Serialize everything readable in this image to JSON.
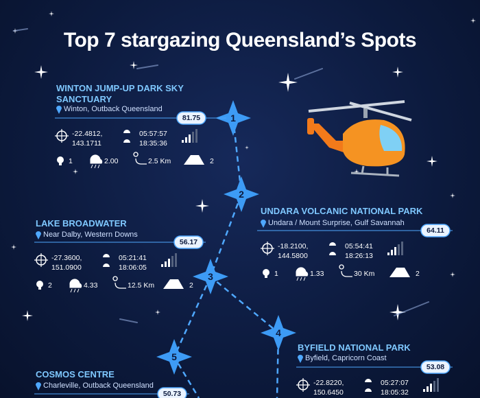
{
  "header": {
    "title": "Top 7 stargazing Queensland’s Spots"
  },
  "spots": [
    {
      "rank": "1",
      "name": "WINTON JUMP-UP DARK SKY SANCTUARY",
      "location": "Winton, Outback Queensland",
      "score": "81.75",
      "latitude": "-22.4812,",
      "longitude": "143.1711",
      "sunrise": "05:57:57",
      "sunset": "18:35:36",
      "light": "1",
      "rain": "2.00",
      "distance": "2.5 Km",
      "campsites": "2"
    },
    {
      "rank": "2",
      "name": "UNDARA VOLCANIC NATIONAL PARK",
      "location": "Undara / Mount Surprise, Gulf Savannah",
      "score": "64.11",
      "latitude": "-18.2100,",
      "longitude": "144.5800",
      "sunrise": "05:54:41",
      "sunset": "18:26:13",
      "light": "1",
      "rain": "1.33",
      "distance": "30 Km",
      "campsites": "2"
    },
    {
      "rank": "3",
      "name": "LAKE BROADWATER",
      "location": "Near Dalby, Western Downs",
      "score": "56.17",
      "latitude": "-27.3600,",
      "longitude": "151.0900",
      "sunrise": "05:21:41",
      "sunset": "18:06:05",
      "light": "2",
      "rain": "4.33",
      "distance": "12.5 Km",
      "campsites": "2"
    },
    {
      "rank": "4",
      "name": "BYFIELD NATIONAL PARK",
      "location": "Byfield, Capricorn Coast",
      "score": "53.08",
      "latitude": "-22.8220,",
      "longitude": "150.6450",
      "sunrise": "05:27:07",
      "sunset": "18:05:32"
    },
    {
      "rank": "5",
      "name": "COSMOS CENTRE",
      "location": "Charleville, Outback Queensland",
      "score": "50.73"
    }
  ]
}
